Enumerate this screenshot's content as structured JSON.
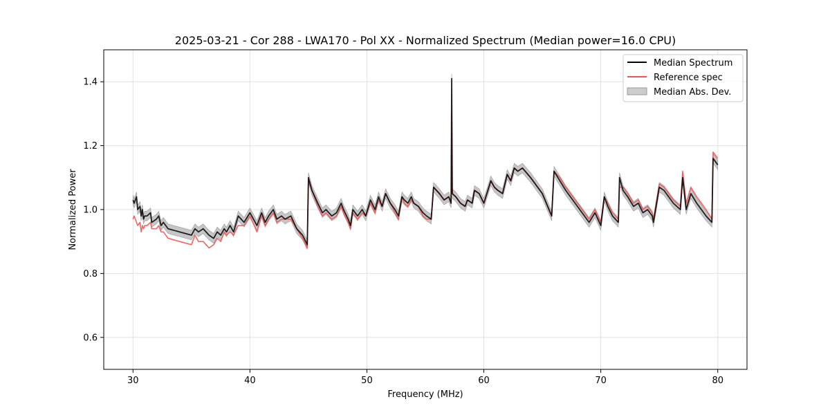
{
  "chart_data": {
    "type": "line",
    "title": "2025-03-21 - Cor 288 - LWA170 - Pol XX - Normalized Spectrum (Median power=16.0 CPU)",
    "xlabel": "Frequency (MHz)",
    "ylabel": "Normalized Power",
    "xlim": [
      27.5,
      82.5
    ],
    "ylim": [
      0.5,
      1.5
    ],
    "xticks": [
      30,
      40,
      50,
      60,
      70,
      80
    ],
    "xtick_labels": [
      "30",
      "40",
      "50",
      "60",
      "70",
      "80"
    ],
    "yticks": [
      0.6,
      0.8,
      1.0,
      1.2,
      1.4
    ],
    "ytick_labels": [
      "0.6",
      "0.8",
      "1.0",
      "1.2",
      "1.4"
    ],
    "grid": true,
    "legend_position": "top-right",
    "colors": {
      "median": "#000000",
      "reference": "#ee5555",
      "mad_fill": "#b3b3b3",
      "mad_edge": "#999999"
    },
    "series": [
      {
        "name": "Median Spectrum",
        "color": "#000000",
        "x": [
          30.0,
          30.1,
          30.3,
          30.4,
          30.6,
          30.7,
          30.8,
          30.9,
          31.0,
          31.2,
          31.5,
          31.6,
          32.0,
          32.2,
          32.4,
          32.6,
          33.0,
          34.0,
          35.0,
          35.3,
          35.6,
          36.0,
          36.5,
          36.9,
          37.2,
          37.5,
          37.8,
          38.0,
          38.3,
          38.6,
          39.0,
          39.5,
          40.0,
          40.6,
          41.0,
          41.3,
          41.6,
          42.0,
          42.3,
          42.7,
          43.0,
          43.5,
          44.0,
          44.5,
          44.9,
          45.0,
          45.3,
          45.8,
          46.2,
          46.5,
          47.0,
          47.4,
          47.8,
          48.0,
          48.4,
          48.6,
          48.8,
          49.2,
          49.6,
          49.9,
          50.3,
          50.7,
          51.0,
          51.3,
          51.6,
          52.0,
          52.4,
          52.7,
          53.0,
          53.2,
          53.5,
          53.8,
          54.0,
          54.4,
          54.8,
          55.1,
          55.5,
          55.7,
          56.2,
          56.6,
          57.0,
          57.2,
          57.25,
          57.3,
          57.6,
          58.0,
          58.4,
          58.6,
          59.0,
          59.2,
          59.6,
          60.0,
          60.6,
          60.9,
          61.2,
          61.6,
          62.0,
          62.3,
          62.6,
          62.9,
          63.3,
          64.0,
          65.0,
          65.8,
          66.0,
          66.5,
          67.0,
          68.0,
          69.0,
          69.5,
          70.0,
          70.3,
          70.6,
          71.0,
          71.5,
          71.6,
          71.9,
          72.3,
          72.8,
          73.2,
          73.6,
          74.0,
          74.4,
          74.5,
          75.0,
          75.4,
          75.8,
          76.2,
          76.8,
          77.0,
          77.3,
          77.7,
          78.2,
          78.6,
          79.0,
          79.5,
          79.6,
          80.0
        ],
        "values": [
          1.03,
          1.02,
          1.04,
          1.0,
          1.01,
          0.98,
          1.0,
          0.97,
          0.98,
          0.98,
          0.99,
          0.96,
          0.97,
          0.98,
          0.95,
          0.96,
          0.94,
          0.93,
          0.92,
          0.94,
          0.93,
          0.94,
          0.92,
          0.91,
          0.93,
          0.92,
          0.94,
          0.93,
          0.95,
          0.93,
          0.98,
          0.96,
          0.99,
          0.95,
          0.99,
          0.96,
          0.98,
          1.0,
          0.97,
          0.98,
          0.97,
          0.98,
          0.94,
          0.92,
          0.89,
          1.1,
          1.06,
          1.02,
          0.99,
          1.0,
          0.98,
          0.99,
          1.02,
          1.0,
          0.97,
          0.95,
          1.0,
          0.98,
          1.0,
          0.98,
          1.03,
          1.0,
          1.04,
          1.01,
          1.05,
          1.02,
          1.0,
          0.98,
          1.04,
          1.03,
          1.02,
          1.04,
          1.02,
          1.01,
          0.99,
          0.98,
          0.97,
          1.07,
          1.05,
          1.03,
          1.04,
          1.02,
          1.41,
          1.05,
          1.04,
          1.02,
          1.01,
          1.03,
          1.02,
          1.06,
          1.05,
          1.02,
          1.09,
          1.07,
          1.06,
          1.05,
          1.11,
          1.09,
          1.13,
          1.12,
          1.13,
          1.1,
          1.05,
          0.98,
          1.12,
          1.09,
          1.06,
          1.01,
          0.96,
          0.99,
          0.95,
          1.04,
          1.01,
          0.98,
          0.96,
          1.1,
          1.06,
          1.04,
          1.01,
          1.02,
          0.99,
          1.0,
          0.98,
          0.96,
          1.07,
          1.06,
          1.04,
          1.02,
          1.0,
          1.1,
          1.0,
          1.05,
          1.02,
          1.0,
          0.98,
          0.96,
          1.16,
          1.14
        ]
      },
      {
        "name": "Reference spec",
        "color": "#ee5555",
        "x": [
          30.0,
          30.1,
          30.3,
          30.4,
          30.6,
          30.7,
          30.8,
          30.9,
          31.0,
          31.2,
          31.5,
          31.6,
          32.0,
          32.2,
          32.4,
          32.6,
          33.0,
          34.0,
          35.0,
          35.3,
          35.6,
          36.0,
          36.5,
          36.9,
          37.2,
          37.5,
          37.8,
          38.0,
          38.3,
          38.6,
          39.0,
          39.5,
          40.0,
          40.6,
          41.0,
          41.3,
          41.6,
          42.0,
          42.3,
          42.7,
          43.0,
          43.5,
          44.0,
          44.5,
          44.9,
          45.0,
          45.3,
          45.8,
          46.2,
          46.5,
          47.0,
          47.4,
          47.8,
          48.0,
          48.4,
          48.6,
          48.8,
          49.2,
          49.6,
          49.9,
          50.3,
          50.7,
          51.0,
          51.3,
          51.6,
          52.0,
          52.4,
          52.7,
          53.0,
          53.2,
          53.5,
          53.8,
          54.0,
          54.4,
          54.8,
          55.1,
          55.5,
          55.7,
          56.2,
          56.6,
          57.0,
          57.2,
          57.25,
          57.3,
          57.6,
          58.0,
          58.4,
          58.6,
          59.0,
          59.2,
          59.6,
          60.0,
          60.6,
          60.9,
          61.2,
          61.6,
          62.0,
          62.3,
          62.6,
          62.9,
          63.3,
          64.0,
          65.0,
          65.8,
          66.0,
          66.5,
          67.0,
          68.0,
          69.0,
          69.5,
          70.0,
          70.3,
          70.6,
          71.0,
          71.5,
          71.6,
          71.9,
          72.3,
          72.8,
          73.2,
          73.6,
          74.0,
          74.4,
          74.5,
          75.0,
          75.4,
          75.8,
          76.2,
          76.8,
          77.0,
          77.3,
          77.7,
          78.2,
          78.6,
          79.0,
          79.5,
          79.6,
          80.0
        ],
        "values": [
          0.97,
          0.98,
          0.96,
          0.95,
          0.96,
          0.93,
          0.95,
          0.94,
          0.95,
          0.95,
          0.96,
          0.94,
          0.94,
          0.95,
          0.93,
          0.93,
          0.91,
          0.9,
          0.89,
          0.92,
          0.9,
          0.9,
          0.88,
          0.89,
          0.91,
          0.9,
          0.93,
          0.92,
          0.93,
          0.92,
          0.95,
          0.95,
          0.98,
          0.93,
          0.98,
          0.95,
          0.97,
          0.99,
          0.96,
          0.97,
          0.97,
          0.97,
          0.94,
          0.91,
          0.88,
          1.09,
          1.06,
          1.01,
          0.98,
          0.99,
          0.97,
          0.98,
          1.01,
          0.99,
          0.96,
          0.94,
          0.99,
          0.97,
          0.99,
          0.98,
          1.02,
          0.99,
          1.03,
          1.01,
          1.05,
          1.02,
          0.99,
          0.97,
          1.04,
          1.02,
          1.01,
          1.03,
          1.02,
          1.01,
          0.98,
          0.97,
          0.97,
          1.07,
          1.05,
          1.03,
          1.04,
          1.02,
          1.3,
          1.05,
          1.04,
          1.02,
          1.01,
          1.03,
          1.02,
          1.06,
          1.05,
          1.02,
          1.09,
          1.07,
          1.06,
          1.05,
          1.11,
          1.09,
          1.13,
          1.12,
          1.13,
          1.1,
          1.05,
          0.98,
          1.12,
          1.1,
          1.07,
          1.02,
          0.97,
          1.0,
          0.96,
          1.04,
          1.02,
          0.99,
          0.97,
          1.07,
          1.07,
          1.05,
          1.02,
          1.03,
          1.0,
          1.01,
          0.99,
          0.97,
          1.08,
          1.07,
          1.05,
          1.03,
          1.01,
          1.12,
          1.02,
          1.07,
          1.04,
          1.02,
          1.0,
          0.97,
          1.18,
          1.16
        ]
      }
    ],
    "mad_band": {
      "name": "Median Abs. Dev.",
      "half_width": 0.015
    },
    "legend": [
      "Median Spectrum",
      "Reference spec",
      "Median Abs. Dev."
    ]
  }
}
